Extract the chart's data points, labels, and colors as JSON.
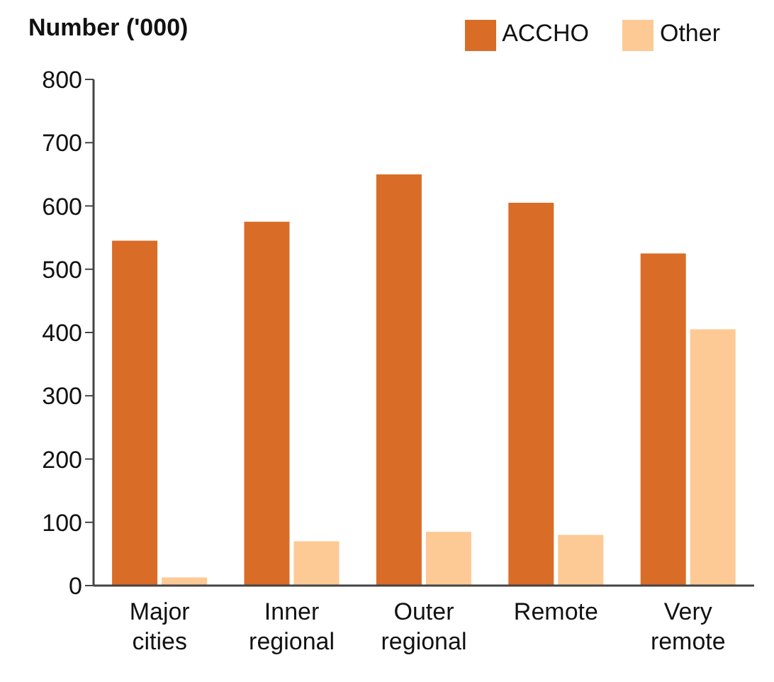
{
  "chart_data": {
    "type": "bar",
    "ylabel": "Number ('000)",
    "categories": [
      "Major cities",
      "Inner regional",
      "Outer regional",
      "Remote",
      "Very remote"
    ],
    "series": [
      {
        "name": "ACCHO",
        "color": "#d96c27",
        "values": [
          545,
          575,
          650,
          605,
          525
        ]
      },
      {
        "name": "Other",
        "color": "#fdc994",
        "values": [
          13,
          70,
          85,
          80,
          405
        ]
      }
    ],
    "ylim": [
      0,
      800
    ],
    "yticks": [
      0,
      100,
      200,
      300,
      400,
      500,
      600,
      700,
      800
    ],
    "grid": false,
    "legend": "top right"
  }
}
